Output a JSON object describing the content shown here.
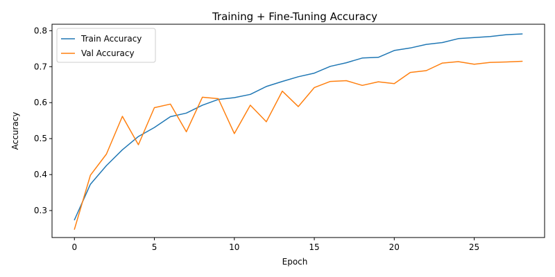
{
  "chart_data": {
    "type": "line",
    "title": "Training + Fine-Tuning Accuracy",
    "xlabel": "Epoch",
    "ylabel": "Accuracy",
    "xlim": [
      -1.4,
      29.4
    ],
    "ylim": [
      0.225,
      0.818
    ],
    "xticks": [
      0,
      5,
      10,
      15,
      20,
      25
    ],
    "yticks": [
      0.3,
      0.4,
      0.5,
      0.6,
      0.7,
      0.8
    ],
    "xtick_labels": [
      "0",
      "5",
      "10",
      "15",
      "20",
      "25"
    ],
    "ytick_labels": [
      "0.3",
      "0.4",
      "0.5",
      "0.6",
      "0.7",
      "0.8"
    ],
    "grid": false,
    "legend_position": "top-left",
    "x": [
      0,
      1,
      2,
      3,
      4,
      5,
      6,
      7,
      8,
      9,
      10,
      11,
      12,
      13,
      14,
      15,
      16,
      17,
      18,
      19,
      20,
      21,
      22,
      23,
      24,
      25,
      26,
      27,
      28
    ],
    "series": [
      {
        "name": "Train Accuracy",
        "color": "#1f77b4",
        "values": [
          0.274,
          0.373,
          0.425,
          0.469,
          0.506,
          0.531,
          0.561,
          0.571,
          0.593,
          0.609,
          0.614,
          0.623,
          0.645,
          0.659,
          0.672,
          0.682,
          0.701,
          0.711,
          0.724,
          0.726,
          0.745,
          0.752,
          0.762,
          0.767,
          0.778,
          0.781,
          0.784,
          0.789,
          0.791
        ]
      },
      {
        "name": "Val Accuracy",
        "color": "#ff7f0e",
        "values": [
          0.248,
          0.398,
          0.457,
          0.562,
          0.483,
          0.586,
          0.596,
          0.519,
          0.615,
          0.611,
          0.514,
          0.593,
          0.547,
          0.632,
          0.589,
          0.642,
          0.659,
          0.661,
          0.648,
          0.658,
          0.653,
          0.684,
          0.689,
          0.71,
          0.714,
          0.707,
          0.712,
          0.713,
          0.715
        ]
      }
    ]
  }
}
